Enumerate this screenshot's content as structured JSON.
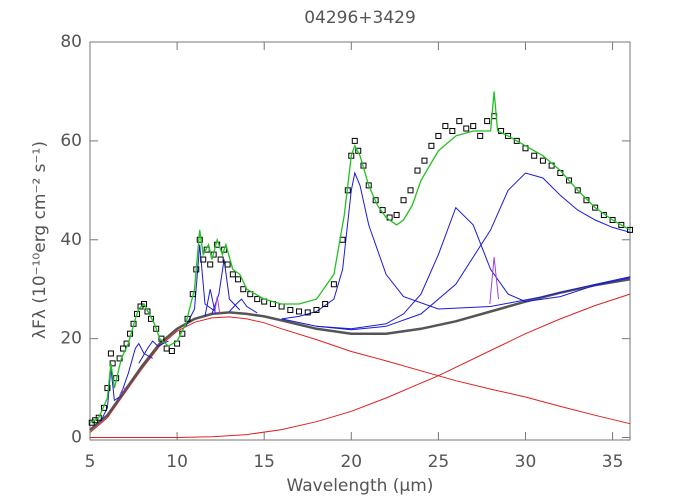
{
  "chart_data": {
    "type": "line",
    "title": "04296+3429",
    "x_label": "Wavelength (μm)",
    "y_label": "λFλ (10⁻¹⁰erg cm⁻² s⁻¹)",
    "xlim": [
      5,
      36
    ],
    "xticks": [
      5,
      10,
      15,
      20,
      25,
      30,
      35
    ],
    "ylim": [
      -0.5,
      80
    ],
    "yticks": [
      0,
      20,
      40,
      60,
      80
    ],
    "series": [
      {
        "color": "#e02020",
        "width": 1,
        "x": [
          5,
          6,
          7,
          8,
          9,
          10,
          11,
          12,
          13,
          14,
          15,
          16,
          18,
          20,
          22,
          24,
          26,
          28,
          30,
          32,
          34,
          36
        ],
        "values": [
          1,
          4,
          9,
          14,
          18.5,
          21.5,
          23.3,
          24.2,
          24.4,
          24,
          23.2,
          22,
          19.8,
          17.4,
          15.5,
          13.5,
          11.5,
          9.8,
          8.2,
          6.3,
          4.5,
          2.8
        ]
      },
      {
        "color": "#e02020",
        "width": 1,
        "x": [
          5,
          10,
          12,
          14,
          16,
          18,
          20,
          22,
          24,
          25,
          26,
          28,
          30,
          32,
          34,
          36
        ],
        "values": [
          0,
          0,
          0.15,
          0.6,
          1.6,
          3.2,
          5.3,
          8,
          11,
          12.5,
          14.2,
          17.6,
          21,
          24,
          26.7,
          29
        ]
      },
      {
        "color": "#555555",
        "width": 2.5,
        "x": [
          5,
          6,
          7,
          8,
          9,
          10,
          11,
          12,
          13,
          14,
          15,
          16,
          18,
          20,
          22,
          24,
          26,
          28,
          30,
          32,
          34,
          36
        ],
        "values": [
          1.5,
          4.5,
          9.5,
          14.5,
          19,
          22,
          24,
          25,
          25.3,
          25,
          24.5,
          23.7,
          22,
          21,
          21,
          22,
          23.5,
          25.5,
          27.5,
          29.3,
          30.8,
          32
        ]
      },
      {
        "color": "#1a1ad8",
        "width": 1,
        "x": [
          5.6,
          6,
          6.2,
          6.4,
          6.8
        ],
        "values": [
          3.2,
          6,
          14,
          7.5,
          8.5
        ]
      },
      {
        "color": "#1a1ad8",
        "width": 1,
        "x": [
          6.8,
          7.2,
          7.6,
          7.8,
          8.1,
          8.6
        ],
        "values": [
          9,
          13,
          18,
          19,
          17,
          16
        ]
      },
      {
        "color": "#1a1ad8",
        "width": 1,
        "x": [
          7.8,
          8.3,
          8.6,
          8.9,
          9.5
        ],
        "values": [
          15,
          18,
          19.5,
          18.5,
          19.5
        ]
      },
      {
        "color": "#1a1ad8",
        "width": 1,
        "x": [
          10.5,
          11,
          11.3,
          11.6,
          12.2
        ],
        "values": [
          22.5,
          26,
          39,
          27,
          25.5
        ]
      },
      {
        "color": "#1a1ad8",
        "width": 1,
        "x": [
          11.6,
          11.9,
          12.2
        ],
        "values": [
          24.5,
          30,
          25
        ]
      },
      {
        "color": "#1a1ad8",
        "width": 1,
        "x": [
          12,
          12.4,
          12.7,
          13,
          13.6
        ],
        "values": [
          25,
          29,
          36,
          28,
          25.8
        ]
      },
      {
        "color": "#1a1ad8",
        "width": 1,
        "x": [
          13,
          13.4,
          13.7,
          14,
          14.6
        ],
        "values": [
          25.5,
          27,
          28,
          26.5,
          25.2
        ]
      },
      {
        "color": "#1a1ad8",
        "width": 1,
        "x": [
          16,
          17,
          18,
          19,
          19.5,
          20,
          20.2,
          20.5,
          21,
          22,
          23,
          25,
          28,
          31,
          34,
          36
        ],
        "values": [
          24,
          24.5,
          25.5,
          28,
          34,
          50,
          53.5,
          51,
          43,
          33,
          28.5,
          26,
          26.5,
          28.5,
          31,
          32.5
        ]
      },
      {
        "color": "#1a1ad8",
        "width": 1,
        "x": [
          18,
          20,
          22,
          23,
          24,
          25,
          26,
          27,
          28,
          29,
          30,
          32,
          34,
          36
        ],
        "values": [
          22.5,
          22,
          23,
          25,
          29,
          37,
          46.5,
          43,
          34,
          29,
          27.5,
          28.5,
          30.8,
          32.3
        ]
      },
      {
        "color": "#1a1ad8",
        "width": 1,
        "x": [
          16,
          18,
          20,
          22,
          24,
          26,
          28,
          29,
          30,
          31,
          32,
          33,
          34,
          35,
          36
        ],
        "values": [
          24,
          22.5,
          21.8,
          22.5,
          25,
          31,
          42,
          50,
          53.5,
          52.5,
          49,
          46,
          44,
          42.5,
          41.5
        ]
      },
      {
        "color": "#a040e0",
        "width": 1,
        "x": [
          6.7,
          6.9,
          7.1
        ],
        "values": [
          8.5,
          10,
          10
        ]
      },
      {
        "color": "#a040e0",
        "width": 1,
        "x": [
          12.15,
          12.3,
          12.45
        ],
        "values": [
          25,
          28.5,
          25
        ]
      },
      {
        "color": "#a040e0",
        "width": 1,
        "x": [
          27.95,
          28.2,
          28.45
        ],
        "values": [
          27,
          36.5,
          28
        ]
      },
      {
        "color": "#000000",
        "marker": "square",
        "x": [
          5.1,
          5.3,
          5.5,
          5.8,
          6.0,
          6.2,
          6.3,
          6.5,
          6.7,
          6.9,
          7.1,
          7.3,
          7.5,
          7.7,
          7.9,
          8.1,
          8.3,
          8.5,
          8.8,
          9.1,
          9.4,
          9.7,
          10.0,
          10.3,
          10.6,
          10.9,
          11.1,
          11.3,
          11.5,
          11.7,
          11.9,
          12.1,
          12.3,
          12.5,
          12.7,
          12.9,
          13.2,
          13.5,
          13.8,
          14.2,
          14.6,
          15.0,
          15.5,
          16.0,
          16.5,
          17.0,
          17.5,
          18.0,
          18.5,
          19.0,
          19.5,
          19.8,
          20.0,
          20.2,
          20.4,
          20.7,
          21.0,
          21.4,
          21.8,
          22.2,
          22.6,
          23.0,
          23.4,
          23.8,
          24.2,
          24.6,
          25.0,
          25.4,
          25.8,
          26.2,
          26.6,
          27.0,
          27.4,
          27.8,
          28.2,
          28.6,
          29.0,
          29.5,
          30.0,
          30.5,
          31.0,
          31.5,
          32.0,
          32.5,
          33.0,
          33.5,
          34.0,
          34.5,
          35.0,
          35.5,
          36.0
        ],
        "values": [
          3,
          3.5,
          4,
          6,
          10,
          17,
          15,
          12,
          16,
          18,
          19,
          21,
          23,
          25,
          26.5,
          27,
          25.5,
          24,
          22,
          20,
          18,
          17.5,
          19,
          21,
          24,
          29,
          34,
          40,
          36,
          38,
          35,
          37,
          39,
          36,
          38,
          35,
          33,
          32,
          30,
          29,
          28,
          27.5,
          27,
          26.5,
          25.8,
          25.5,
          25.3,
          25.8,
          27,
          31,
          40,
          50,
          57,
          60,
          58,
          55,
          51,
          48,
          46,
          44.5,
          45,
          48,
          50,
          54,
          56,
          59,
          61,
          63,
          62,
          64,
          62.5,
          63,
          61,
          64,
          65,
          62,
          61,
          60,
          58.5,
          57,
          56,
          55,
          53.5,
          52,
          50,
          48,
          46.5,
          45,
          44,
          43,
          42
        ]
      },
      {
        "color": "#22c022",
        "width": 1.3,
        "x": [
          5,
          5.5,
          6,
          6.2,
          6.4,
          6.8,
          7.2,
          7.6,
          7.8,
          8.1,
          8.4,
          8.7,
          9,
          9.5,
          10,
          10.5,
          11,
          11.3,
          11.5,
          11.8,
          12,
          12.3,
          12.6,
          12.8,
          13.2,
          13.6,
          14,
          15,
          16,
          17,
          18,
          19,
          19.6,
          20,
          20.2,
          20.5,
          21,
          21.5,
          22,
          22.6,
          23,
          23.5,
          24,
          25,
          26,
          27,
          28,
          28.2,
          28.4,
          29,
          30,
          31,
          32,
          33,
          34,
          35,
          36
        ],
        "values": [
          3,
          4,
          8,
          15,
          10,
          16,
          19,
          24,
          26,
          27,
          25,
          23,
          20,
          18.5,
          19.5,
          23,
          30,
          42,
          37,
          39,
          36,
          40,
          37,
          39,
          34,
          33,
          30,
          28,
          27,
          27,
          28,
          33,
          45,
          57,
          59,
          57,
          51,
          47,
          44.5,
          43,
          44,
          47,
          52,
          58,
          61,
          62,
          62,
          70,
          62,
          61,
          59,
          57,
          54,
          50,
          46.5,
          44,
          42
        ]
      }
    ]
  }
}
